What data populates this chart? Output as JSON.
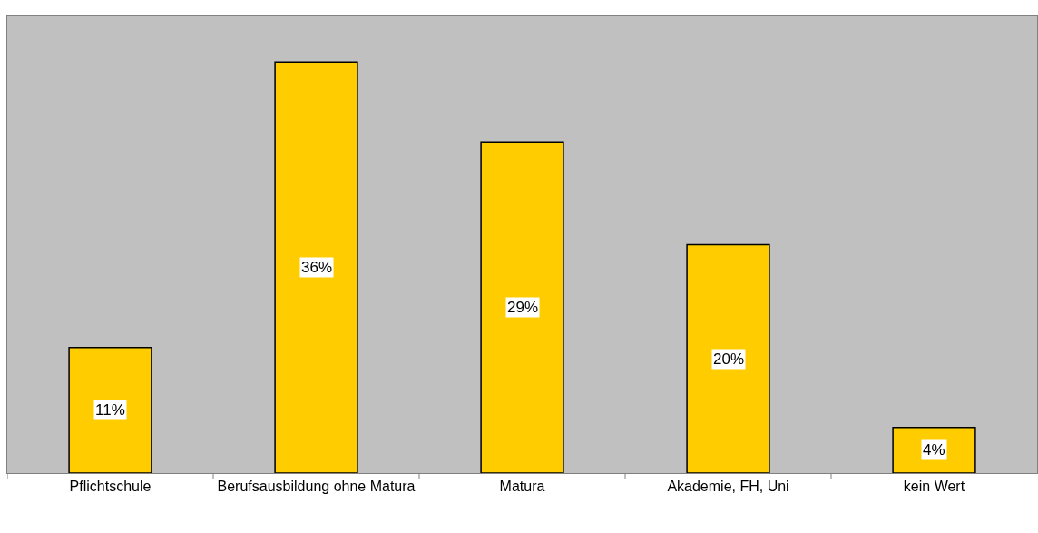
{
  "chart_data": {
    "type": "bar",
    "categories": [
      "Pflichtschule",
      "Berufsausbildung ohne Matura",
      "Matura",
      "Akademie, FH, Uni",
      "kein Wert"
    ],
    "values": [
      11,
      36,
      29,
      20,
      4
    ],
    "value_labels": [
      "11%",
      "36%",
      "29%",
      "20%",
      "4%"
    ],
    "color": "#ffcc00",
    "ylim": [
      0,
      40
    ],
    "grid": false,
    "legend": false,
    "tick_labels": "x"
  }
}
